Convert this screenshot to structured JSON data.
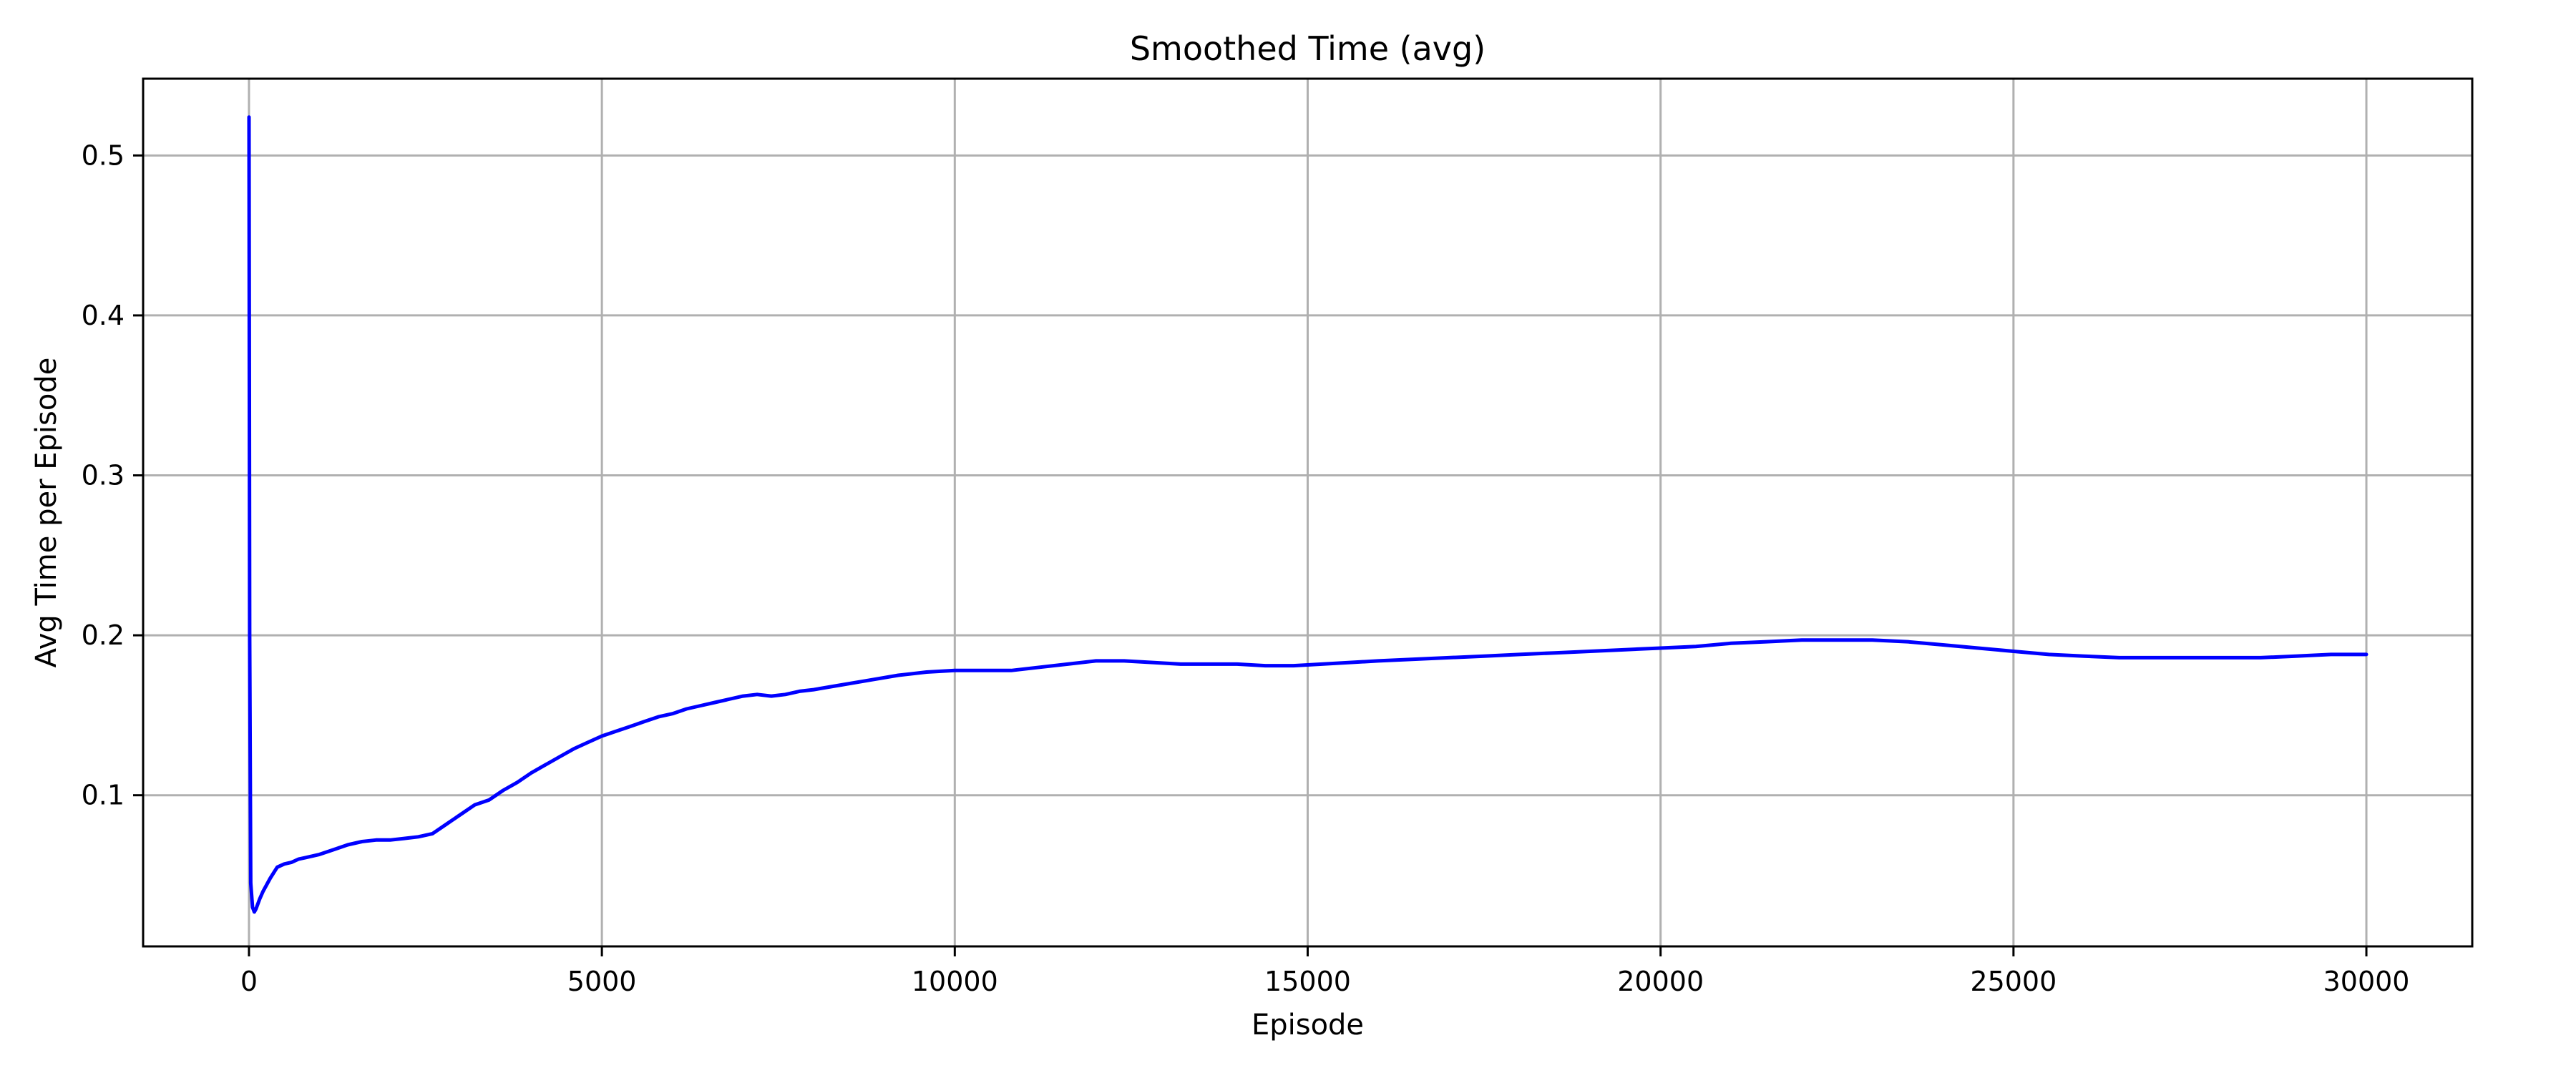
{
  "chart_data": {
    "type": "line",
    "title": "Smoothed Time (avg)",
    "xlabel": "Episode",
    "ylabel": "Avg Time per Episode",
    "xlim": [
      -1500,
      31500
    ],
    "ylim": [
      0.0055,
      0.548
    ],
    "xticks": [
      0,
      5000,
      10000,
      15000,
      20000,
      25000,
      30000
    ],
    "xtick_labels": [
      "0",
      "5000",
      "10000",
      "15000",
      "20000",
      "25000",
      "30000"
    ],
    "yticks": [
      0.1,
      0.2,
      0.3,
      0.4,
      0.5
    ],
    "ytick_labels": [
      "0.1",
      "0.2",
      "0.3",
      "0.4",
      "0.5"
    ],
    "grid": true,
    "legend": "none",
    "line_color": "#0000ff",
    "grid_color": "#b0b0b0",
    "series": [
      {
        "x": [
          0,
          10,
          25,
          50,
          75,
          100,
          150,
          200,
          300,
          400,
          500,
          600,
          700,
          800,
          1000,
          1200,
          1400,
          1600,
          1800,
          2000,
          2200,
          2400,
          2600,
          2800,
          3000,
          3200,
          3400,
          3600,
          3800,
          4000,
          4200,
          4400,
          4600,
          4800,
          5000,
          5200,
          5400,
          5600,
          5800,
          6000,
          6200,
          6400,
          6600,
          6800,
          7000,
          7200,
          7400,
          7600,
          7800,
          8000,
          8400,
          8800,
          9200,
          9600,
          10000,
          10400,
          10800,
          11200,
          11600,
          12000,
          12400,
          12800,
          13200,
          13600,
          14000,
          14400,
          14800,
          15200,
          15600,
          16000,
          16500,
          17000,
          17500,
          18000,
          18500,
          19000,
          19500,
          20000,
          20500,
          21000,
          21500,
          22000,
          22500,
          23000,
          23500,
          24000,
          24500,
          25000,
          25500,
          26000,
          26500,
          27000,
          27500,
          28000,
          28500,
          29000,
          29500,
          30000
        ],
        "values": [
          0.524,
          0.2,
          0.045,
          0.03,
          0.027,
          0.029,
          0.035,
          0.04,
          0.048,
          0.055,
          0.057,
          0.058,
          0.06,
          0.061,
          0.063,
          0.066,
          0.069,
          0.071,
          0.072,
          0.072,
          0.073,
          0.074,
          0.076,
          0.082,
          0.088,
          0.094,
          0.097,
          0.103,
          0.108,
          0.114,
          0.119,
          0.124,
          0.129,
          0.133,
          0.137,
          0.14,
          0.143,
          0.146,
          0.149,
          0.151,
          0.154,
          0.156,
          0.158,
          0.16,
          0.162,
          0.163,
          0.162,
          0.163,
          0.165,
          0.166,
          0.169,
          0.172,
          0.175,
          0.177,
          0.178,
          0.178,
          0.178,
          0.18,
          0.182,
          0.184,
          0.184,
          0.183,
          0.182,
          0.182,
          0.182,
          0.181,
          0.181,
          0.182,
          0.183,
          0.184,
          0.185,
          0.186,
          0.187,
          0.188,
          0.189,
          0.19,
          0.191,
          0.192,
          0.193,
          0.195,
          0.196,
          0.197,
          0.197,
          0.197,
          0.196,
          0.194,
          0.192,
          0.19,
          0.188,
          0.187,
          0.186,
          0.186,
          0.186,
          0.186,
          0.186,
          0.187,
          0.188,
          0.188
        ]
      }
    ]
  }
}
